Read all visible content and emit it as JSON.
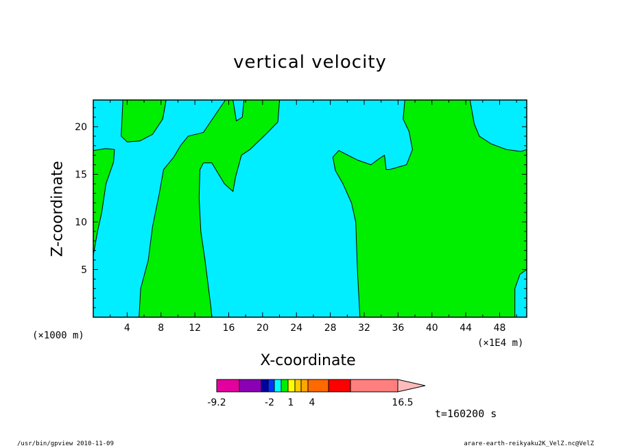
{
  "chart_data": {
    "type": "heatmap",
    "title": "vertical velocity",
    "xlabel": "X-coordinate",
    "ylabel": "Z-coordinate",
    "x_unit_left": "(×1000 m)",
    "x_unit_right": "(×1E4 m)",
    "xlim": [
      0,
      51.2
    ],
    "ylim": [
      0,
      22.8
    ],
    "x_ticks": [
      4,
      8,
      12,
      16,
      20,
      24,
      28,
      32,
      36,
      40,
      44,
      48
    ],
    "y_ticks": [
      5,
      10,
      15,
      20
    ],
    "regions": [
      {
        "fill": "#00ee00",
        "points": [
          [
            0,
            6.5
          ],
          [
            0.5,
            9
          ],
          [
            1,
            11
          ],
          [
            1.5,
            14
          ],
          [
            2.4,
            16.3
          ],
          [
            2.5,
            17.6
          ],
          [
            1.5,
            17.7
          ],
          [
            0,
            17.5
          ]
        ]
      },
      {
        "fill": "#00ee00",
        "points": [
          [
            3.5,
            22.8
          ],
          [
            3.3,
            19
          ],
          [
            4,
            18.4
          ],
          [
            5.5,
            18.5
          ],
          [
            7,
            19.2
          ],
          [
            8.2,
            20.8
          ],
          [
            8.6,
            22.8
          ]
        ]
      },
      {
        "fill": "#00ee00",
        "points": [
          [
            5.4,
            0
          ],
          [
            5.6,
            3
          ],
          [
            6.5,
            6
          ],
          [
            7,
            9.5
          ],
          [
            7.8,
            13
          ],
          [
            8.3,
            15.5
          ],
          [
            9.5,
            16.8
          ],
          [
            10.3,
            18
          ],
          [
            11.2,
            19
          ],
          [
            13,
            19.4
          ],
          [
            15.6,
            22.8
          ],
          [
            16.5,
            22.8
          ],
          [
            16.9,
            20.6
          ],
          [
            17.6,
            21
          ],
          [
            17.8,
            22.8
          ],
          [
            22,
            22.8
          ],
          [
            21.8,
            20.5
          ],
          [
            20.5,
            19.3
          ],
          [
            18.5,
            17.6
          ],
          [
            17.5,
            17
          ],
          [
            16.8,
            14.7
          ],
          [
            16.5,
            13.2
          ],
          [
            15.5,
            14
          ],
          [
            14,
            16.2
          ],
          [
            13,
            16.2
          ],
          [
            12.6,
            15.5
          ],
          [
            12.5,
            12.5
          ],
          [
            12.7,
            9
          ],
          [
            13.2,
            6
          ],
          [
            13.9,
            1
          ],
          [
            14,
            0
          ]
        ]
      },
      {
        "fill": "#00ee00",
        "points": [
          [
            31.5,
            0
          ],
          [
            31.2,
            5
          ],
          [
            31,
            10
          ],
          [
            30.5,
            12
          ],
          [
            29.5,
            14
          ],
          [
            28.6,
            15.4
          ],
          [
            28.3,
            16.8
          ],
          [
            29,
            17.5
          ],
          [
            31.2,
            16.5
          ],
          [
            32.8,
            16
          ],
          [
            33.7,
            16.6
          ],
          [
            34.4,
            17
          ],
          [
            34.6,
            15.5
          ],
          [
            35,
            15.5
          ],
          [
            37,
            16
          ],
          [
            37.7,
            17.6
          ],
          [
            37.3,
            19.5
          ],
          [
            36.6,
            20.8
          ],
          [
            36.8,
            22.8
          ],
          [
            44.5,
            22.8
          ],
          [
            45,
            20.3
          ],
          [
            45.6,
            19
          ],
          [
            47,
            18.2
          ],
          [
            48.8,
            17.6
          ],
          [
            50.5,
            17.4
          ],
          [
            51.2,
            17.6
          ],
          [
            51.2,
            5
          ],
          [
            50.4,
            4.5
          ],
          [
            49.8,
            3
          ],
          [
            49.8,
            0
          ]
        ]
      }
    ],
    "colorbar": {
      "colors": [
        "#e4009f",
        "#8b00b5",
        "#00009c",
        "#0033ff",
        "#00ffff",
        "#00ee00",
        "#ffff00",
        "#ffcc00",
        "#ffa500",
        "#ff6a00",
        "#ff0000",
        "#ff7f7f",
        "#ffbbbb"
      ],
      "labels": [
        "-9.2",
        "-2",
        "1",
        "4",
        "16.5"
      ],
      "time_label": "t=160200 s"
    }
  },
  "footer": {
    "left": "/usr/bin/gpview   2010-11-09",
    "right": "arare-earth-reikyaku2K_VelZ.nc@VelZ"
  }
}
